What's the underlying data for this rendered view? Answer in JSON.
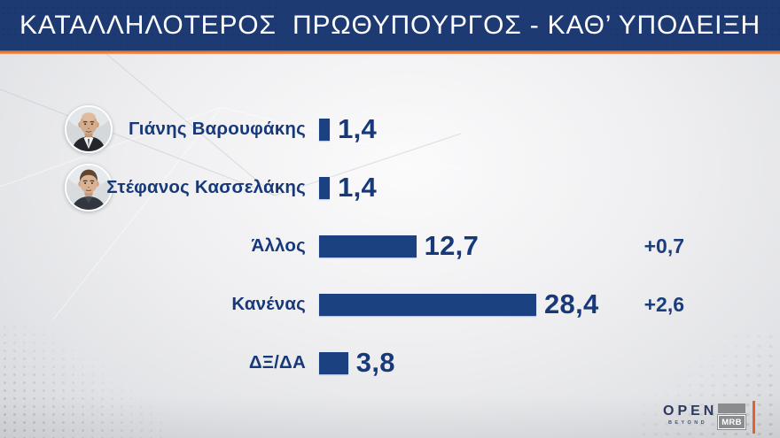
{
  "header": {
    "title": "ΚΑΤΑΛΛΗΛΟΤΕΡΟΣ  ΠΡΩΘΥΠΟΥΡΓΟΣ - ΚΑΘ’ ΥΠΟΔΕΙΞΗ"
  },
  "chart_data": {
    "type": "bar",
    "orientation": "horizontal",
    "title": "ΚΑΤΑΛΛΗΛΟΤΕΡΟΣ ΠΡΩΘΥΠΟΥΡΓΟΣ - ΚΑΘ’ ΥΠΟΔΕΙΞΗ",
    "xlim": [
      0,
      30
    ],
    "bar_color": "#1c4181",
    "value_format": "decimal-comma",
    "categories": [
      "Γιάνης Βαρουφάκης",
      "Στέφανος Κασσελάκης",
      "Άλλος",
      "Κανένας",
      "ΔΞ/ΔΑ"
    ],
    "values": [
      1.4,
      1.4,
      12.7,
      28.4,
      3.8
    ],
    "rows": [
      {
        "label": "Γιάνης Βαρουφάκης",
        "value": 1.4,
        "value_label": "1,4",
        "delta": "",
        "avatar": "varoufakis-avatar"
      },
      {
        "label": "Στέφανος Κασσελάκης",
        "value": 1.4,
        "value_label": "1,4",
        "delta": "",
        "avatar": "kasselakis-avatar"
      },
      {
        "label": "Άλλος",
        "value": 12.7,
        "value_label": "12,7",
        "delta": "+0,7",
        "avatar": null
      },
      {
        "label": "Κανένας",
        "value": 28.4,
        "value_label": "28,4",
        "delta": "+2,6",
        "avatar": null
      },
      {
        "label": "ΔΞ/ΔΑ",
        "value": 3.8,
        "value_label": "3,8",
        "delta": "",
        "avatar": null
      }
    ]
  },
  "footer": {
    "channel_logo": "OPEN",
    "channel_sub": "BEYOND",
    "pollster_logo": "MRB"
  },
  "colors": {
    "header_bg": "#1e3a73",
    "accent_orange": "#e5793d",
    "bar_navy": "#1c4181",
    "text_navy": "#17397a"
  }
}
